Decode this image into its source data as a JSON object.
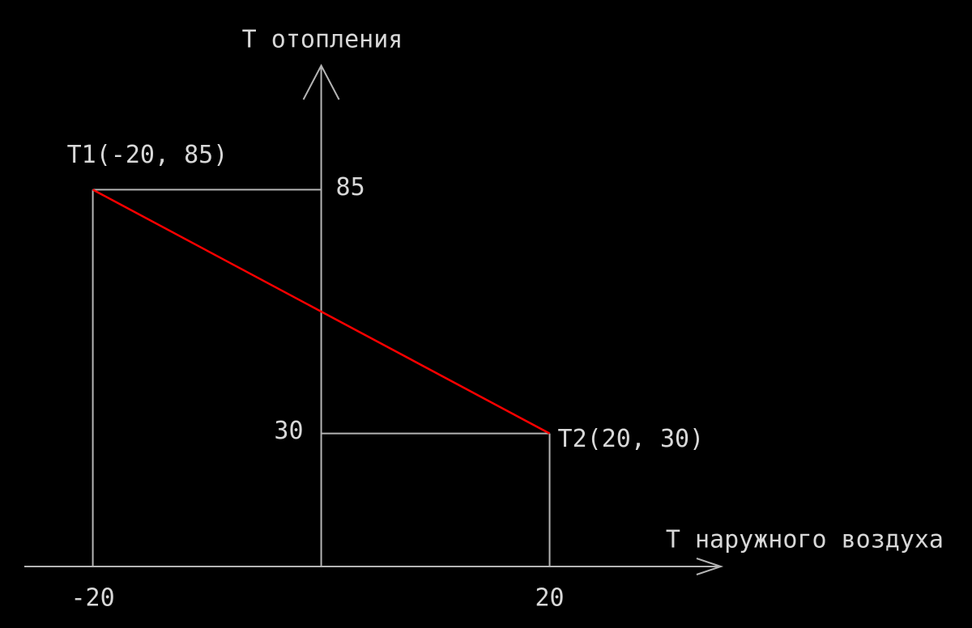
{
  "chart_data": {
    "type": "line",
    "y_label": "T отопления",
    "x_label": "T наружного воздуха",
    "x": [
      -20,
      20
    ],
    "series": [
      {
        "name": null,
        "color": "#ff0000",
        "values": [
          85,
          30
        ]
      }
    ],
    "annotations": [
      "T1(-20, 85)",
      "T2(20, 30)"
    ],
    "xlim": [
      -26,
      35
    ],
    "xticks": [
      -20,
      20
    ],
    "ylim": [
      0,
      113
    ],
    "yticks": [
      30,
      85
    ],
    "grid": false
  }
}
